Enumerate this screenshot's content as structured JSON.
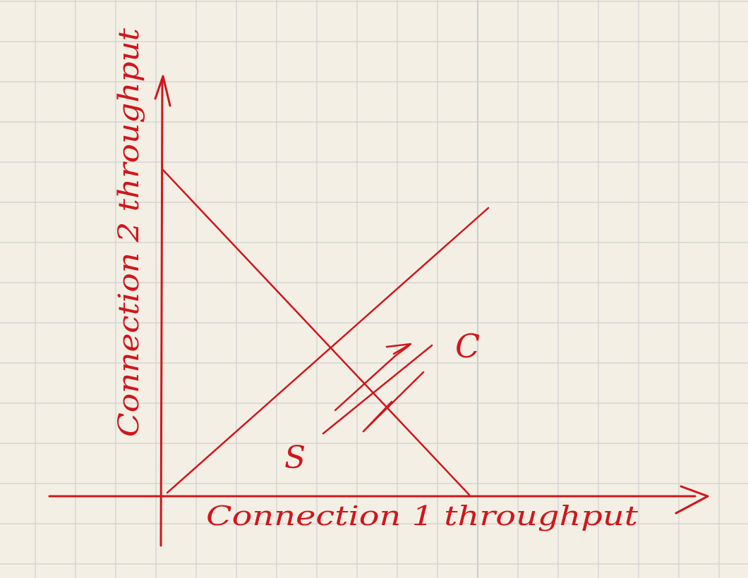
{
  "page": {
    "paper": "grid",
    "background_color": "#f3efe4",
    "grid_color": "#cfcfcf",
    "ink_color": "#d0161c"
  },
  "diagram": {
    "x_axis_label": "Connection 1 throughput",
    "y_axis_label": "Connection 2 throughput",
    "point_s_label": "S",
    "point_c_label": "C",
    "lines": [
      "equal bandwidth share line",
      "full bandwidth utilization line"
    ],
    "annotations": [
      "zigzag arrow showing throughput oscillation between S and C"
    ]
  }
}
